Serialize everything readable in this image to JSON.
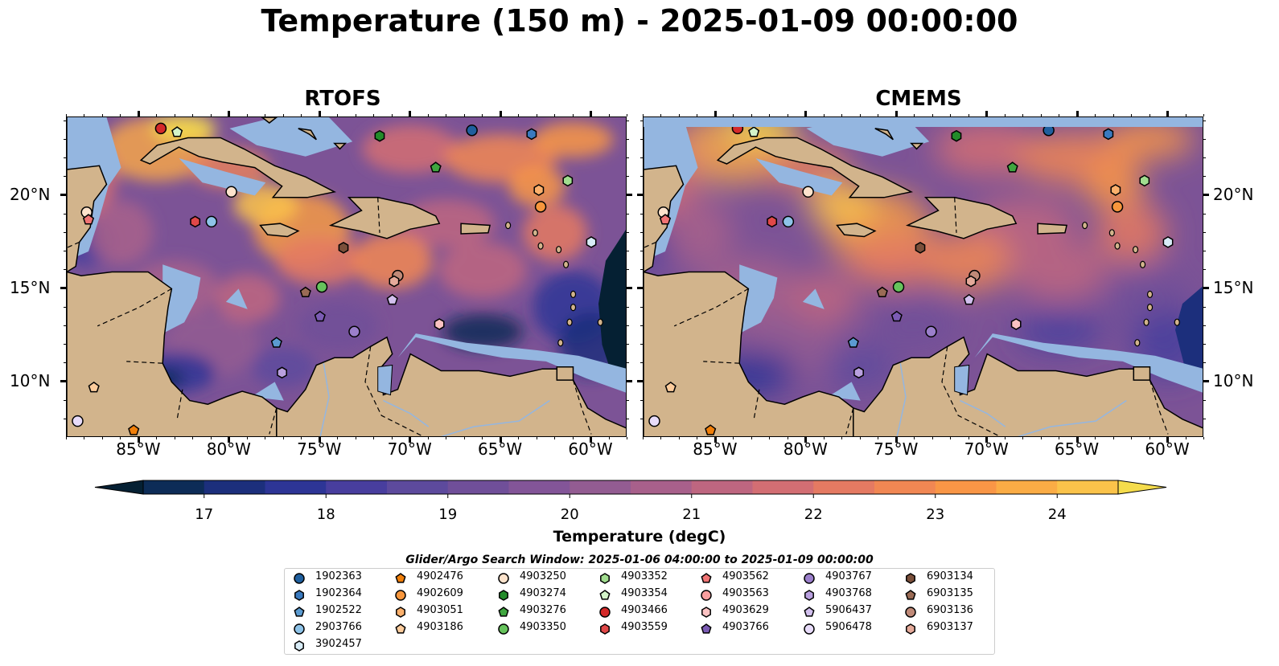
{
  "title": "Temperature (150 m) - 2025-01-09 00:00:00",
  "panels": {
    "left": {
      "title": "RTOFS"
    },
    "right": {
      "title": "CMEMS"
    }
  },
  "axes": {
    "lon_ticks": [
      "85°W",
      "80°W",
      "75°W",
      "70°W",
      "65°W",
      "60°W"
    ],
    "lat_ticks": [
      "20°N",
      "15°N",
      "10°N"
    ],
    "lon_range": [
      -89,
      -58
    ],
    "lat_range": [
      7,
      24.2
    ]
  },
  "colorbar": {
    "label": "Temperature (degC)",
    "ticks": [
      "17",
      "18",
      "19",
      "20",
      "21",
      "22",
      "23",
      "24"
    ],
    "range": [
      16.75,
      24.5
    ],
    "colors": [
      "#052033",
      "#0d2c57",
      "#1c2f7c",
      "#2d3596",
      "#483e9e",
      "#5d4a9d",
      "#704f99",
      "#835598",
      "#935c92",
      "#a8608b",
      "#be6680",
      "#d36e73",
      "#e57a62",
      "#f18753",
      "#f99646",
      "#fbac45",
      "#fbc34a",
      "#f5dc4c"
    ]
  },
  "search_window": "Glider/Argo Search Window: 2025-01-06 04:00:00 to 2025-01-09 00:00:00",
  "legend": {
    "columns": [
      [
        {
          "id": "1902363",
          "marker": "circle",
          "color": "#1f5f9e"
        },
        {
          "id": "1902364",
          "marker": "hexagon",
          "color": "#3a7abf"
        },
        {
          "id": "1902522",
          "marker": "pentagon",
          "color": "#5b9bd1"
        },
        {
          "id": "2903766",
          "marker": "circle",
          "color": "#8ec3e8"
        },
        {
          "id": "3902457",
          "marker": "hexagon",
          "color": "#d8ecf7"
        }
      ],
      [
        {
          "id": "4902476",
          "marker": "pentagon",
          "color": "#f07f0a"
        },
        {
          "id": "4902609",
          "marker": "circle",
          "color": "#f7963c"
        },
        {
          "id": "4903051",
          "marker": "hexagon",
          "color": "#fbb06c"
        },
        {
          "id": "4903186",
          "marker": "pentagon",
          "color": "#fdcc9c"
        }
      ],
      [
        {
          "id": "4903250",
          "marker": "circle",
          "color": "#fde3cc"
        },
        {
          "id": "4903274",
          "marker": "hexagon",
          "color": "#238b2a"
        },
        {
          "id": "4903276",
          "marker": "pentagon",
          "color": "#3fa63f"
        },
        {
          "id": "4903350",
          "marker": "circle",
          "color": "#66c35c"
        }
      ],
      [
        {
          "id": "4903352",
          "marker": "hexagon",
          "color": "#a1dd8f"
        },
        {
          "id": "4903354",
          "marker": "pentagon",
          "color": "#d3f3c8"
        },
        {
          "id": "4903466",
          "marker": "circle",
          "color": "#d42a2a"
        },
        {
          "id": "4903559",
          "marker": "hexagon",
          "color": "#e04848"
        }
      ],
      [
        {
          "id": "4903562",
          "marker": "pentagon",
          "color": "#f07474"
        },
        {
          "id": "4903563",
          "marker": "circle",
          "color": "#f89f9f"
        },
        {
          "id": "4903629",
          "marker": "hexagon",
          "color": "#fbc2c2"
        },
        {
          "id": "4903766",
          "marker": "pentagon",
          "color": "#7b5bb4"
        }
      ],
      [
        {
          "id": "4903767",
          "marker": "circle",
          "color": "#9b7fcb"
        },
        {
          "id": "4903768",
          "marker": "hexagon",
          "color": "#b9a0df"
        },
        {
          "id": "5906437",
          "marker": "pentagon",
          "color": "#d2c0ee"
        },
        {
          "id": "5906478",
          "marker": "circle",
          "color": "#e8dcfa"
        }
      ],
      [
        {
          "id": "6903134",
          "marker": "hexagon",
          "color": "#7a4f3a"
        },
        {
          "id": "6903135",
          "marker": "pentagon",
          "color": "#9a6b55"
        },
        {
          "id": "6903136",
          "marker": "circle",
          "color": "#c08a78"
        },
        {
          "id": "6903137",
          "marker": "hexagon",
          "color": "#e5aa9a"
        }
      ]
    ]
  },
  "floats": [
    {
      "id": "4903466",
      "lon": -83.8,
      "lat": 23.6
    },
    {
      "id": "4903354",
      "lon": -82.9,
      "lat": 23.4
    },
    {
      "id": "4903274",
      "lon": -71.7,
      "lat": 23.2
    },
    {
      "id": "1902363",
      "lon": -66.6,
      "lat": 23.5
    },
    {
      "id": "1902364",
      "lon": -63.3,
      "lat": 23.3
    },
    {
      "id": "4903276",
      "lon": -68.6,
      "lat": 21.5
    },
    {
      "id": "4903352",
      "lon": -61.3,
      "lat": 20.8
    },
    {
      "id": "4903250",
      "lon": -79.9,
      "lat": 20.2
    },
    {
      "id": "4903051",
      "lon": -62.9,
      "lat": 20.3
    },
    {
      "id": "4902609",
      "lon": -62.8,
      "lat": 19.4
    },
    {
      "id": "4903250",
      "lon": -87.9,
      "lat": 19.1
    },
    {
      "id": "4903562",
      "lon": -87.8,
      "lat": 18.7
    },
    {
      "id": "4903559",
      "lon": -81.9,
      "lat": 18.6
    },
    {
      "id": "2903766",
      "lon": -81.0,
      "lat": 18.6
    },
    {
      "id": "3902457",
      "lon": -60.0,
      "lat": 17.5
    },
    {
      "id": "6903134",
      "lon": -73.7,
      "lat": 17.2
    },
    {
      "id": "6903136",
      "lon": -70.7,
      "lat": 15.7
    },
    {
      "id": "6903137",
      "lon": -70.9,
      "lat": 15.4
    },
    {
      "id": "4903350",
      "lon": -74.9,
      "lat": 15.1
    },
    {
      "id": "6903135",
      "lon": -75.8,
      "lat": 14.8
    },
    {
      "id": "5906437",
      "lon": -71.0,
      "lat": 14.4
    },
    {
      "id": "4903766",
      "lon": -75.0,
      "lat": 13.5
    },
    {
      "id": "4903629",
      "lon": -68.4,
      "lat": 13.1
    },
    {
      "id": "4903767",
      "lon": -73.1,
      "lat": 12.7
    },
    {
      "id": "1902522",
      "lon": -77.4,
      "lat": 12.1
    },
    {
      "id": "4903768",
      "lon": -77.1,
      "lat": 10.5
    },
    {
      "id": "4903186",
      "lon": -87.5,
      "lat": 9.7
    },
    {
      "id": "5906478",
      "lon": -88.4,
      "lat": 7.9
    },
    {
      "id": "4902476",
      "lon": -85.3,
      "lat": 7.4
    }
  ]
}
